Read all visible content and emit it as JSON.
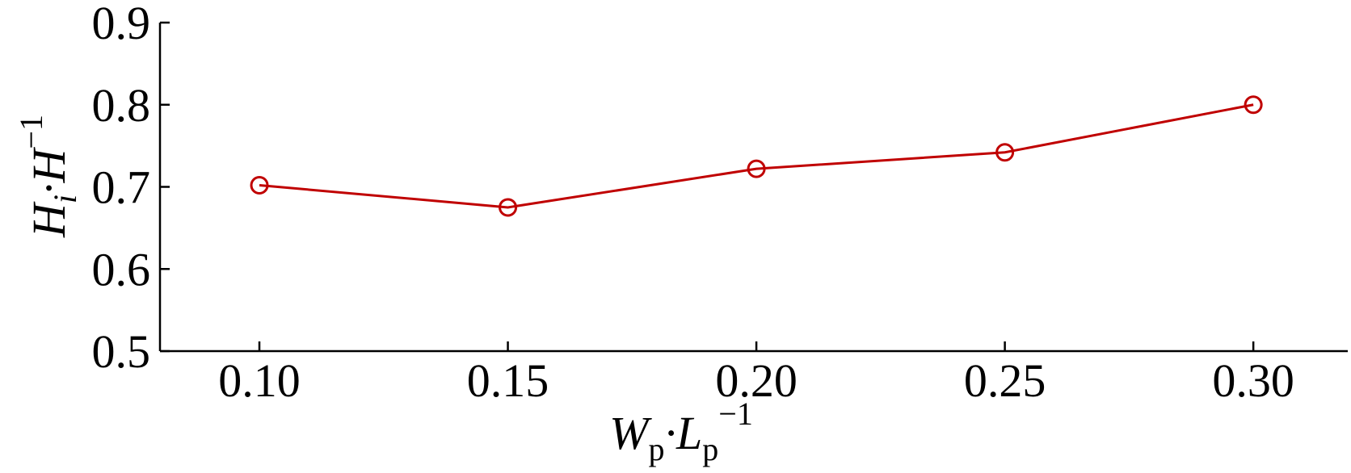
{
  "chart_data": {
    "type": "line",
    "xlabel": {
      "main": "W",
      "sub1": "p",
      "mid": "·L",
      "sub2": "p",
      "sup": "−1"
    },
    "ylabel": {
      "main": "H",
      "sub1": "i",
      "mid": "·H",
      "sup": "−1"
    },
    "x_ticks": [
      "0.10",
      "0.15",
      "0.20",
      "0.25",
      "0.30"
    ],
    "y_ticks": [
      "0.5",
      "0.6",
      "0.7",
      "0.8",
      "0.9"
    ],
    "xlim": [
      0.08,
      0.319
    ],
    "ylim": [
      0.5,
      0.9
    ],
    "grid": false,
    "series": [
      {
        "x": [
          0.1,
          0.15,
          0.2,
          0.25,
          0.3
        ],
        "y": [
          0.702,
          0.675,
          0.722,
          0.742,
          0.8
        ],
        "color": "#c00000",
        "marker": "open-circle"
      }
    ]
  }
}
